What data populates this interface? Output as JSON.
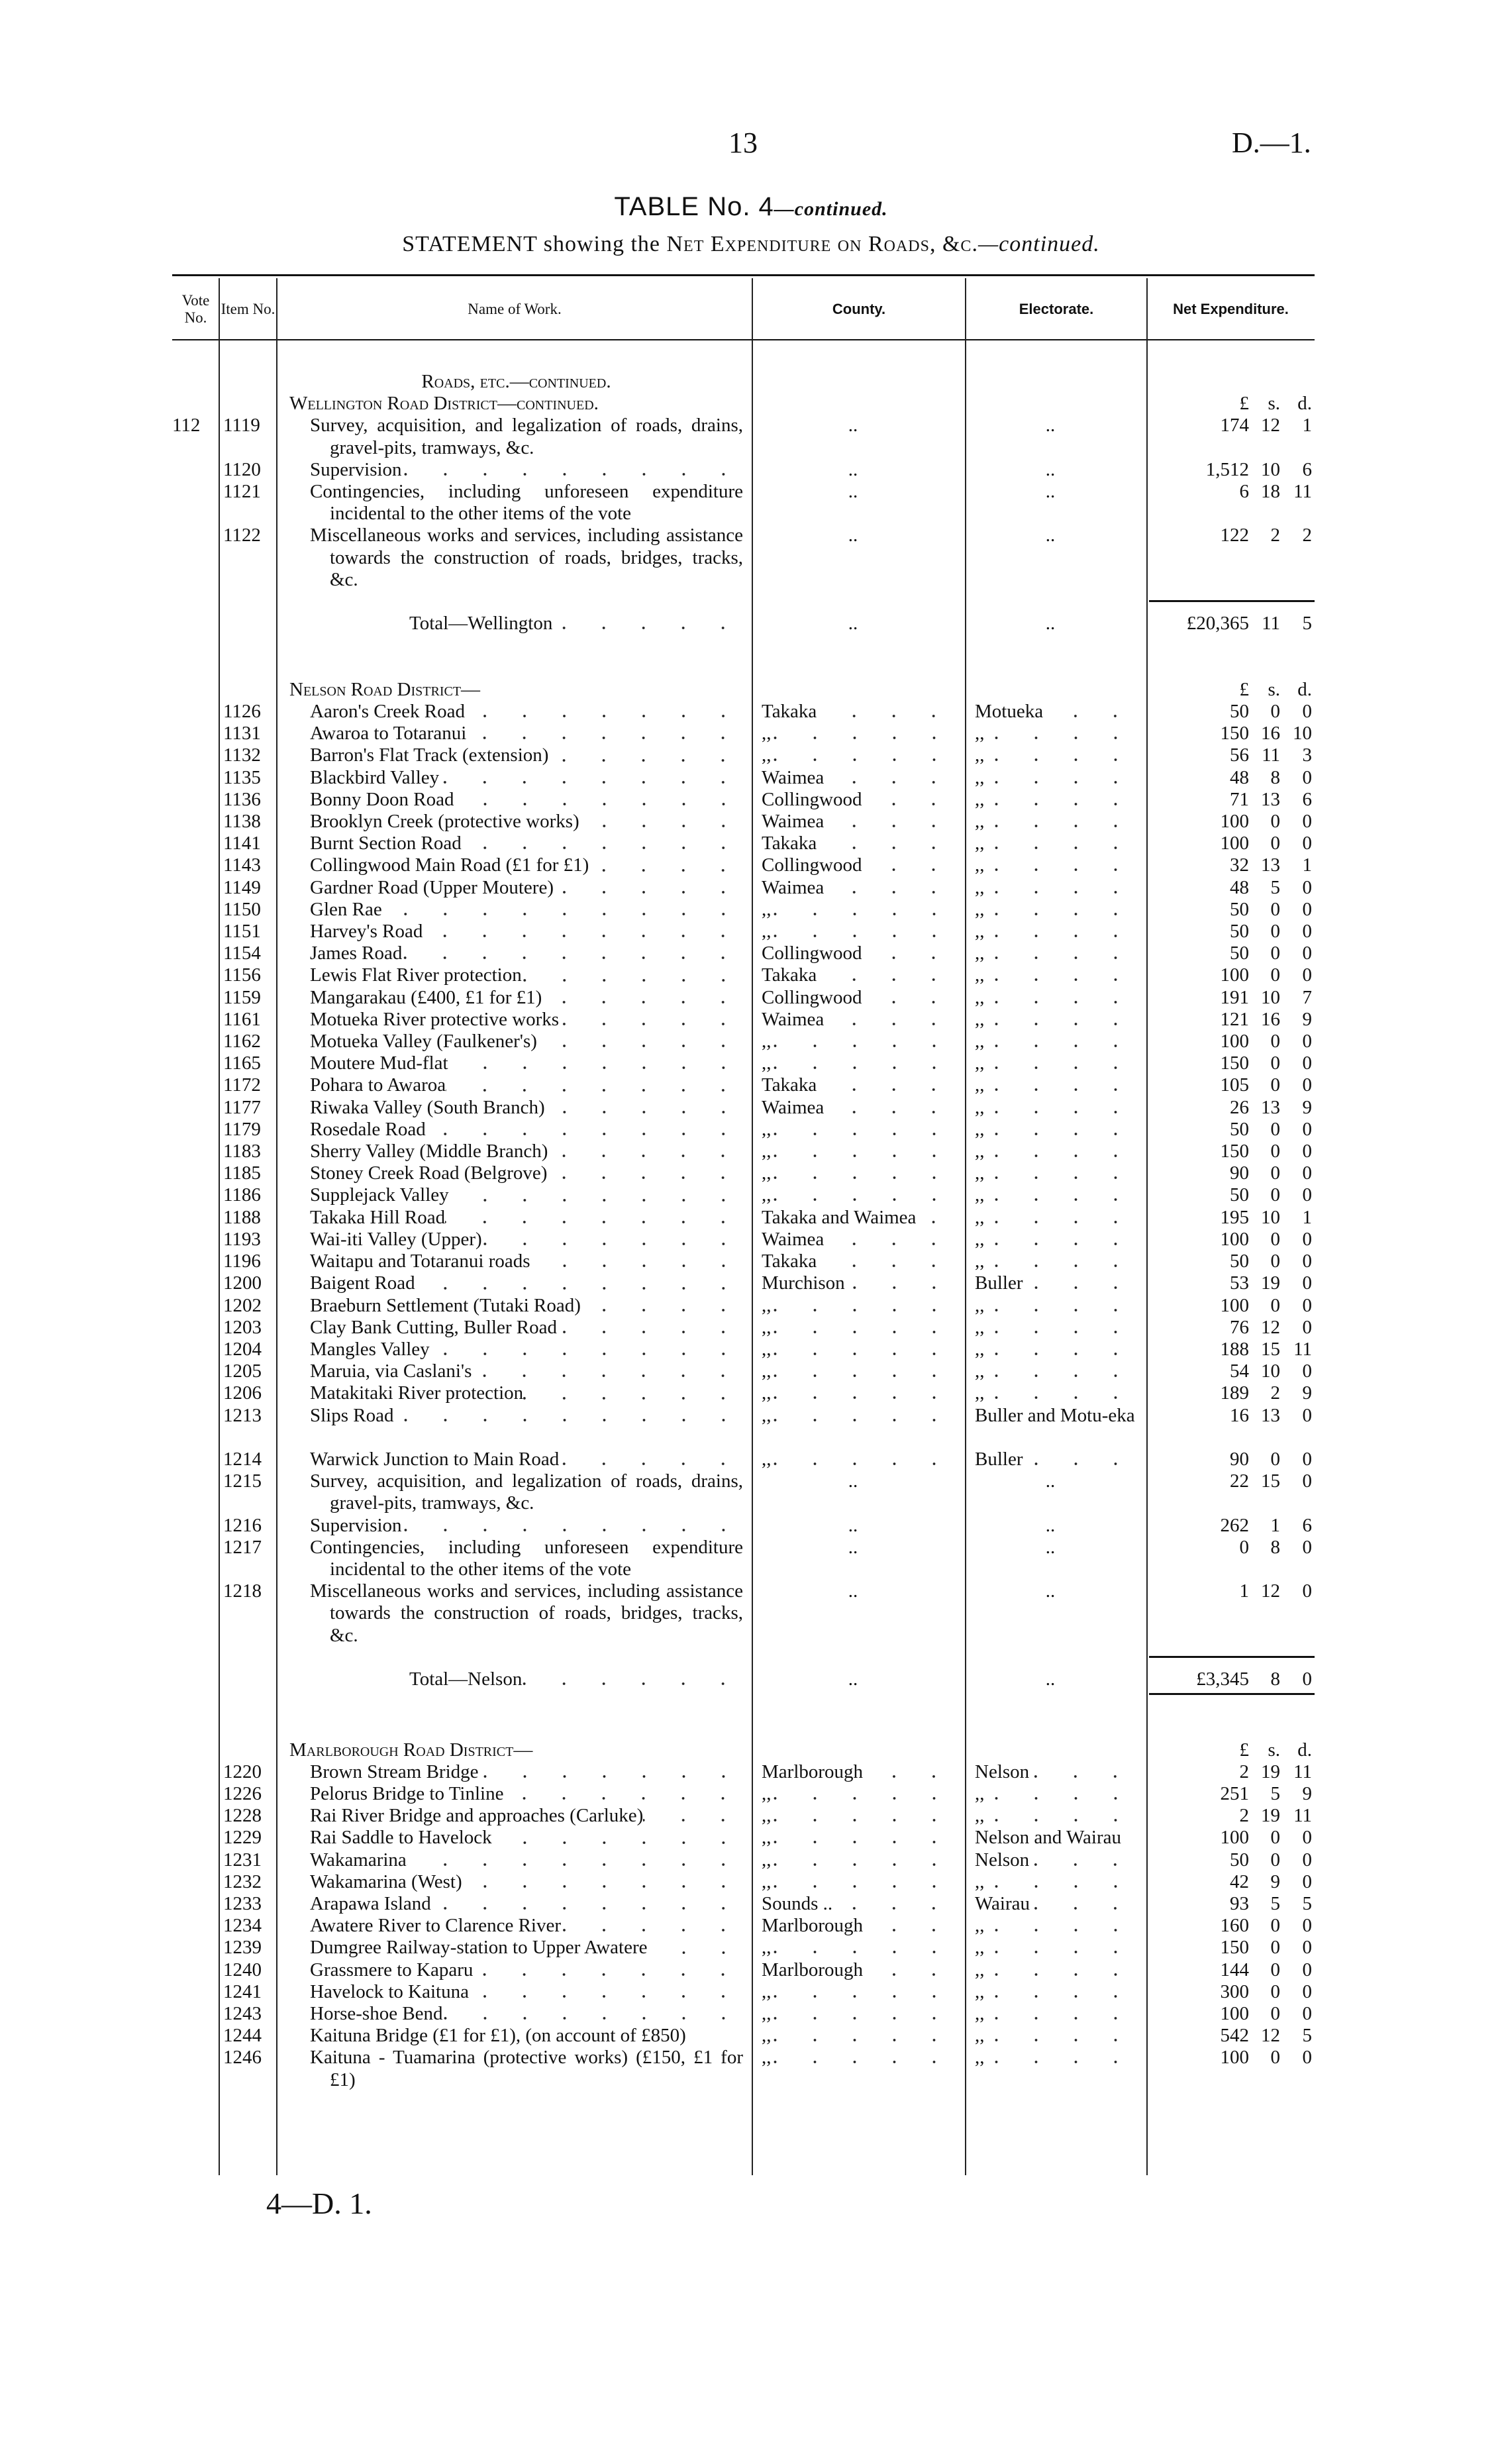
{
  "page": {
    "number": "13",
    "doc_ref": "D.—1.",
    "footer": "4—D. 1."
  },
  "title": {
    "main": "TABLE No. 4",
    "cont": "—continued.",
    "subtitle_pre": "STATEMENT showing the",
    "subtitle_sc": "Net Expenditure on Roads, &c.",
    "subtitle_cont": "—continued."
  },
  "headers": {
    "vote": "Vote No.",
    "item": "Item No.",
    "name": "Name of Work.",
    "county": "County.",
    "electorate": "Electorate.",
    "net": "Net Expenditure."
  },
  "currency_header": {
    "l": "£",
    "s": "s.",
    "d": "d."
  },
  "roads_heading": "Roads, etc.—continued.",
  "sections": [
    {
      "heading": "Wellington Road District—continued.",
      "vote": "112",
      "items": [
        {
          "item": "1119",
          "name": "Survey, acquisition, and legalization of roads, drains, gravel-pits, tramways, &c.",
          "county": "..",
          "electorate": "..",
          "l": "174",
          "s": "12",
          "d": "1"
        },
        {
          "item": "1120",
          "name": "Supervision",
          "county": "..",
          "electorate": "..",
          "l": "1,512",
          "s": "10",
          "d": "6"
        },
        {
          "item": "1121",
          "name": "Contingencies, including unforeseen expenditure incidental to the other items of the vote",
          "county": "..",
          "electorate": "..",
          "l": "6",
          "s": "18",
          "d": "11"
        },
        {
          "item": "1122",
          "name": "Miscellaneous works and services, including assistance towards the construction of roads, bridges, tracks, &c.",
          "county": "..",
          "electorate": "..",
          "l": "122",
          "s": "2",
          "d": "2"
        }
      ],
      "total": {
        "label": "Total—Wellington",
        "county": "..",
        "electorate": "..",
        "l": "£20,365",
        "s": "11",
        "d": "5"
      }
    },
    {
      "heading": "Nelson Road District—",
      "items": [
        {
          "item": "1126",
          "name": "Aaron's Creek Road",
          "county": "Takaka",
          "electorate": "Motueka",
          "l": "50",
          "s": "0",
          "d": "0"
        },
        {
          "item": "1131",
          "name": "Awaroa to Totaranui",
          "county": ",,",
          "electorate": ",,",
          "l": "150",
          "s": "16",
          "d": "10"
        },
        {
          "item": "1132",
          "name": "Barron's Flat Track (extension)",
          "county": ",,",
          "electorate": ",,",
          "l": "56",
          "s": "11",
          "d": "3"
        },
        {
          "item": "1135",
          "name": "Blackbird Valley",
          "county": "Waimea",
          "electorate": ",,",
          "l": "48",
          "s": "8",
          "d": "0"
        },
        {
          "item": "1136",
          "name": "Bonny Doon Road",
          "county": "Collingwood",
          "electorate": ",,",
          "l": "71",
          "s": "13",
          "d": "6"
        },
        {
          "item": "1138",
          "name": "Brooklyn Creek (protective works)",
          "county": "Waimea",
          "electorate": ",,",
          "l": "100",
          "s": "0",
          "d": "0"
        },
        {
          "item": "1141",
          "name": "Burnt Section Road",
          "county": "Takaka",
          "electorate": ",,",
          "l": "100",
          "s": "0",
          "d": "0"
        },
        {
          "item": "1143",
          "name": "Collingwood Main Road (£1 for £1)",
          "county": "Collingwood",
          "electorate": ",,",
          "l": "32",
          "s": "13",
          "d": "1"
        },
        {
          "item": "1149",
          "name": "Gardner Road (Upper Moutere)",
          "county": "Waimea",
          "electorate": ",,",
          "l": "48",
          "s": "5",
          "d": "0"
        },
        {
          "item": "1150",
          "name": "Glen Rae",
          "county": ",,",
          "electorate": ",,",
          "l": "50",
          "s": "0",
          "d": "0"
        },
        {
          "item": "1151",
          "name": "Harvey's Road",
          "county": ",,",
          "electorate": ",,",
          "l": "50",
          "s": "0",
          "d": "0"
        },
        {
          "item": "1154",
          "name": "James Road",
          "county": "Collingwood",
          "electorate": ",,",
          "l": "50",
          "s": "0",
          "d": "0"
        },
        {
          "item": "1156",
          "name": "Lewis Flat River protection",
          "county": "Takaka",
          "electorate": ",,",
          "l": "100",
          "s": "0",
          "d": "0"
        },
        {
          "item": "1159",
          "name": "Mangarakau (£400, £1 for £1)",
          "county": "Collingwood",
          "electorate": ",,",
          "l": "191",
          "s": "10",
          "d": "7"
        },
        {
          "item": "1161",
          "name": "Motueka River protective works",
          "county": "Waimea",
          "electorate": ",,",
          "l": "121",
          "s": "16",
          "d": "9"
        },
        {
          "item": "1162",
          "name": "Motueka Valley (Faulkener's)",
          "county": ",,",
          "electorate": ",,",
          "l": "100",
          "s": "0",
          "d": "0"
        },
        {
          "item": "1165",
          "name": "Moutere Mud-flat",
          "county": ",,",
          "electorate": ",,",
          "l": "150",
          "s": "0",
          "d": "0"
        },
        {
          "item": "1172",
          "name": "Pohara to Awaroa",
          "county": "Takaka",
          "electorate": ",,",
          "l": "105",
          "s": "0",
          "d": "0"
        },
        {
          "item": "1177",
          "name": "Riwaka Valley (South Branch)",
          "county": "Waimea",
          "electorate": ",,",
          "l": "26",
          "s": "13",
          "d": "9"
        },
        {
          "item": "1179",
          "name": "Rosedale Road",
          "county": ",,",
          "electorate": ",,",
          "l": "50",
          "s": "0",
          "d": "0"
        },
        {
          "item": "1183",
          "name": "Sherry Valley (Middle Branch)",
          "county": ",,",
          "electorate": ",,",
          "l": "150",
          "s": "0",
          "d": "0"
        },
        {
          "item": "1185",
          "name": "Stoney Creek Road (Belgrove)",
          "county": ",,",
          "electorate": ",,",
          "l": "90",
          "s": "0",
          "d": "0"
        },
        {
          "item": "1186",
          "name": "Supplejack Valley",
          "county": ",,",
          "electorate": ",,",
          "l": "50",
          "s": "0",
          "d": "0"
        },
        {
          "item": "1188",
          "name": "Takaka Hill Road",
          "county": "Takaka and Waimea",
          "electorate": ",,",
          "l": "195",
          "s": "10",
          "d": "1"
        },
        {
          "item": "1193",
          "name": "Wai-iti Valley (Upper)",
          "county": "Waimea",
          "electorate": ",,",
          "l": "100",
          "s": "0",
          "d": "0"
        },
        {
          "item": "1196",
          "name": "Waitapu and Totaranui roads",
          "county": "Takaka",
          "electorate": ",,",
          "l": "50",
          "s": "0",
          "d": "0"
        },
        {
          "item": "1200",
          "name": "Baigent Road",
          "county": "Murchison",
          "electorate": "Buller",
          "l": "53",
          "s": "19",
          "d": "0"
        },
        {
          "item": "1202",
          "name": "Braeburn Settlement (Tutaki Road)",
          "county": ",,",
          "electorate": ",,",
          "l": "100",
          "s": "0",
          "d": "0"
        },
        {
          "item": "1203",
          "name": "Clay Bank Cutting, Buller Road",
          "county": ",,",
          "electorate": ",,",
          "l": "76",
          "s": "12",
          "d": "0"
        },
        {
          "item": "1204",
          "name": "Mangles Valley",
          "county": ",,",
          "electorate": ",,",
          "l": "188",
          "s": "15",
          "d": "11"
        },
        {
          "item": "1205",
          "name": "Maruia, via Caslani's",
          "county": ",,",
          "electorate": ",,",
          "l": "54",
          "s": "10",
          "d": "0"
        },
        {
          "item": "1206",
          "name": "Matakitaki River protection",
          "county": ",,",
          "electorate": ",,",
          "l": "189",
          "s": "2",
          "d": "9"
        },
        {
          "item": "1213",
          "name": "Slips Road",
          "county": ",,",
          "electorate": "Buller and Motu-eka",
          "l": "16",
          "s": "13",
          "d": "0",
          "gap_after": true
        },
        {
          "item": "1214",
          "name": "Warwick Junction to Main Road",
          "county": ",,",
          "electorate": "Buller",
          "l": "90",
          "s": "0",
          "d": "0"
        },
        {
          "item": "1215",
          "name": "Survey, acquisition, and legalization of roads, drains, gravel-pits, tramways, &c.",
          "county": "..",
          "electorate": "..",
          "l": "22",
          "s": "15",
          "d": "0"
        },
        {
          "item": "1216",
          "name": "Supervision",
          "county": "..",
          "electorate": "..",
          "l": "262",
          "s": "1",
          "d": "6"
        },
        {
          "item": "1217",
          "name": "Contingencies, including unforeseen expenditure incidental to the other items of the vote",
          "county": "..",
          "electorate": "..",
          "l": "0",
          "s": "8",
          "d": "0"
        },
        {
          "item": "1218",
          "name": "Miscellaneous works and services, including assistance towards the construction of roads, bridges, tracks, &c.",
          "county": "..",
          "electorate": "..",
          "l": "1",
          "s": "12",
          "d": "0"
        }
      ],
      "total": {
        "label": "Total—Nelson",
        "county": "..",
        "electorate": "..",
        "l": "£3,345",
        "s": "8",
        "d": "0"
      }
    },
    {
      "heading": "Marlborough Road District—",
      "items": [
        {
          "item": "1220",
          "name": "Brown Stream Bridge",
          "county": "Marlborough",
          "electorate": "Nelson",
          "l": "2",
          "s": "19",
          "d": "11"
        },
        {
          "item": "1226",
          "name": "Pelorus Bridge to Tinline",
          "county": ",,",
          "electorate": ",,",
          "l": "251",
          "s": "5",
          "d": "9"
        },
        {
          "item": "1228",
          "name": "Rai River Bridge and approaches (Carluke)",
          "county": ",,",
          "electorate": ",,",
          "l": "2",
          "s": "19",
          "d": "11"
        },
        {
          "item": "1229",
          "name": "Rai Saddle to Havelock",
          "county": ",,",
          "electorate": "Nelson and Wairau",
          "l": "100",
          "s": "0",
          "d": "0"
        },
        {
          "item": "1231",
          "name": "Wakamarina",
          "county": ",,",
          "electorate": "Nelson",
          "l": "50",
          "s": "0",
          "d": "0"
        },
        {
          "item": "1232",
          "name": "Wakamarina (West)",
          "county": ",,",
          "electorate": ",,",
          "l": "42",
          "s": "9",
          "d": "0"
        },
        {
          "item": "1233",
          "name": "Arapawa Island",
          "county": "Sounds ..",
          "electorate": "Wairau",
          "l": "93",
          "s": "5",
          "d": "5"
        },
        {
          "item": "1234",
          "name": "Awatere River to Clarence River",
          "county": "Marlborough",
          "electorate": ",,",
          "l": "160",
          "s": "0",
          "d": "0"
        },
        {
          "item": "1239",
          "name": "Dumgree Railway-station to Upper Awatere",
          "county": ",,",
          "electorate": ",,",
          "l": "150",
          "s": "0",
          "d": "0"
        },
        {
          "item": "1240",
          "name": "Grassmere to Kaparu",
          "county": "Marlborough",
          "electorate": ",,",
          "l": "144",
          "s": "0",
          "d": "0"
        },
        {
          "item": "1241",
          "name": "Havelock to Kaituna",
          "county": ",,",
          "electorate": ",,",
          "l": "300",
          "s": "0",
          "d": "0"
        },
        {
          "item": "1243",
          "name": "Horse-shoe Bend",
          "county": ",,",
          "electorate": ",,",
          "l": "100",
          "s": "0",
          "d": "0"
        },
        {
          "item": "1244",
          "name": "Kaituna Bridge (£1 for £1), (on account of £850)",
          "county": ",,",
          "electorate": ",,",
          "l": "542",
          "s": "12",
          "d": "5"
        },
        {
          "item": "1246",
          "name": "Kaituna - Tuamarina (protective works) (£150, £1 for £1)",
          "county": ",,",
          "electorate": ",,",
          "l": "100",
          "s": "0",
          "d": "0"
        }
      ]
    }
  ]
}
